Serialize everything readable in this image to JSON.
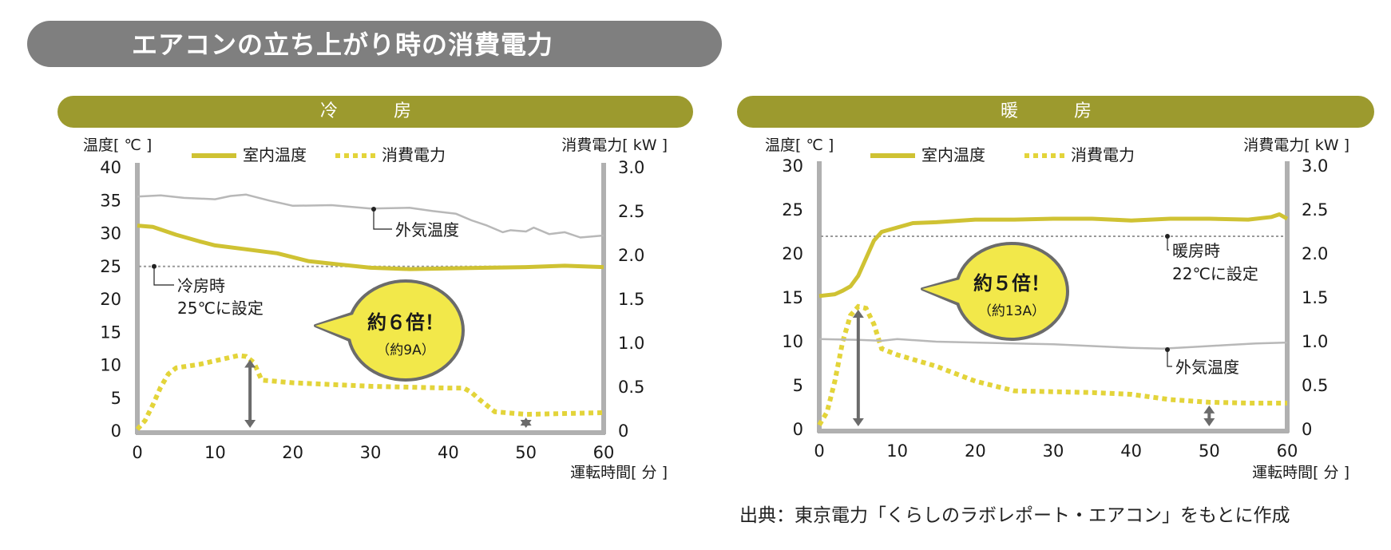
{
  "title": "エアコンの立ち上がり時の消費電力",
  "source": "出典：東京電力「くらしのラボレポート・エアコン」をもとに作成",
  "colors": {
    "indoor": "#cfc233",
    "power": "#e3d43a",
    "outdoor": "#b8b8b8",
    "setpoint": "#9a9a9a",
    "panel": "#9c9a2e",
    "bubble": "#f2e84a"
  },
  "chart_data": [
    {
      "type": "line",
      "panel_title": "冷　房",
      "ylabel_left": "温度[ ℃ ]",
      "ylabel_right": "消費電力[ kW ]",
      "xlabel": "運転時間[ 分 ]",
      "xlim": [
        0,
        60
      ],
      "ylim_left": [
        0,
        40
      ],
      "ylim_right": [
        0,
        3.0
      ],
      "xticks": [
        "0",
        "10",
        "20",
        "30",
        "40",
        "50",
        "60"
      ],
      "yticks_left": [
        "0",
        "5",
        "10",
        "15",
        "20",
        "25",
        "30",
        "35",
        "40"
      ],
      "yticks_right": [
        "0",
        "0.5",
        "1.0",
        "1.5",
        "2.0",
        "2.5",
        "3.0"
      ],
      "legend": [
        "室内温度",
        "消費電力"
      ],
      "series": [
        {
          "name": "室内温度",
          "axis": "left",
          "style": "solid",
          "x": [
            0,
            2,
            5,
            8,
            10,
            14,
            18,
            22,
            26,
            30,
            35,
            40,
            45,
            50,
            55,
            60
          ],
          "y": [
            31.2,
            31.0,
            29.8,
            28.8,
            28.2,
            27.6,
            27.0,
            25.8,
            25.3,
            24.8,
            24.6,
            24.7,
            24.8,
            24.9,
            25.1,
            24.9
          ]
        },
        {
          "name": "消費電力",
          "axis": "right",
          "style": "dotted",
          "x": [
            0,
            1,
            2,
            3,
            4,
            5,
            8,
            10,
            12,
            13,
            14,
            15,
            16,
            20,
            25,
            30,
            35,
            40,
            42,
            43,
            44,
            46,
            50,
            55,
            60
          ],
          "y": [
            0.02,
            0.12,
            0.3,
            0.5,
            0.65,
            0.72,
            0.76,
            0.8,
            0.84,
            0.86,
            0.85,
            0.78,
            0.58,
            0.55,
            0.53,
            0.51,
            0.5,
            0.49,
            0.49,
            0.44,
            0.36,
            0.22,
            0.19,
            0.2,
            0.21
          ]
        },
        {
          "name": "外気温度",
          "axis": "left",
          "style": "solid",
          "x": [
            0,
            3,
            6,
            10,
            12,
            14,
            17,
            20,
            25,
            30,
            35,
            38,
            41,
            43,
            45,
            47,
            48,
            50,
            51,
            53,
            55,
            57,
            60
          ],
          "y": [
            35.6,
            35.8,
            35.4,
            35.2,
            35.7,
            35.9,
            35.0,
            34.2,
            34.3,
            33.8,
            33.9,
            33.4,
            33.0,
            32.0,
            31.2,
            30.2,
            30.5,
            30.3,
            30.9,
            29.9,
            30.2,
            29.4,
            29.7
          ]
        }
      ],
      "setpoint": {
        "value": 25,
        "label1": "冷房時",
        "label2": "25℃に設定"
      },
      "outdoor_label": "外気温度",
      "bubble": {
        "main": "約６倍！",
        "sub": "（約9A）"
      },
      "arrows": [
        {
          "x": 14.5,
          "from": 0.0,
          "to": 0.85
        },
        {
          "x": 50.0,
          "from": 0.0,
          "to": 0.19
        }
      ]
    },
    {
      "type": "line",
      "panel_title": "暖　房",
      "ylabel_left": "温度[ ℃ ]",
      "ylabel_right": "消費電力[ kW ]",
      "xlabel": "運転時間[ 分 ]",
      "xlim": [
        0,
        60
      ],
      "ylim_left": [
        0,
        30
      ],
      "ylim_right": [
        0,
        3.0
      ],
      "xticks": [
        "0",
        "10",
        "20",
        "30",
        "40",
        "50",
        "60"
      ],
      "yticks_left": [
        "0",
        "5",
        "10",
        "15",
        "20",
        "25",
        "30"
      ],
      "yticks_right": [
        "0",
        "0.5",
        "1.0",
        "1.5",
        "2.0",
        "2.5",
        "3.0"
      ],
      "legend": [
        "室内温度",
        "消費電力"
      ],
      "series": [
        {
          "name": "室内温度",
          "axis": "left",
          "style": "solid",
          "x": [
            0,
            2,
            3,
            4,
            5,
            6,
            7,
            8,
            10,
            12,
            15,
            20,
            25,
            30,
            35,
            40,
            45,
            50,
            55,
            58,
            59,
            60
          ],
          "y": [
            15.2,
            15.4,
            15.8,
            16.3,
            17.5,
            19.5,
            21.5,
            22.5,
            23.0,
            23.5,
            23.6,
            23.9,
            23.9,
            24.0,
            24.0,
            23.8,
            24.0,
            24.0,
            23.9,
            24.2,
            24.5,
            24.0
          ]
        },
        {
          "name": "消費電力",
          "axis": "right",
          "style": "dotted",
          "x": [
            0,
            1,
            2,
            3,
            4,
            5,
            6,
            7,
            8,
            10,
            15,
            20,
            25,
            30,
            35,
            40,
            45,
            50,
            55,
            60
          ],
          "y": [
            0.05,
            0.2,
            0.55,
            1.0,
            1.3,
            1.4,
            1.38,
            1.2,
            0.92,
            0.85,
            0.72,
            0.55,
            0.44,
            0.43,
            0.42,
            0.4,
            0.34,
            0.31,
            0.3,
            0.3
          ]
        },
        {
          "name": "外気温度",
          "axis": "left",
          "style": "solid",
          "x": [
            0,
            5,
            8,
            10,
            15,
            20,
            25,
            30,
            35,
            40,
            44,
            48,
            52,
            56,
            60
          ],
          "y": [
            10.3,
            10.2,
            10.1,
            10.3,
            10.0,
            9.9,
            9.8,
            9.7,
            9.5,
            9.3,
            9.2,
            9.4,
            9.6,
            9.8,
            9.9
          ]
        }
      ],
      "setpoint": {
        "value": 22,
        "label1": "暖房時",
        "label2": "22℃に設定"
      },
      "outdoor_label": "外気温度",
      "bubble": {
        "main": "約５倍！",
        "sub": "（約13A）"
      },
      "arrows": [
        {
          "x": 5.0,
          "from": 0.0,
          "to": 1.4
        },
        {
          "x": 50.0,
          "from": 0.0,
          "to": 0.31
        }
      ]
    }
  ]
}
